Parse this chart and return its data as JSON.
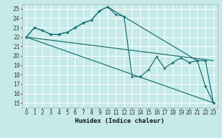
{
  "xlabel": "Humidex (Indice chaleur)",
  "xlim": [
    -0.5,
    23.5
  ],
  "ylim": [
    14.5,
    25.5
  ],
  "yticks": [
    15,
    16,
    17,
    18,
    19,
    20,
    21,
    22,
    23,
    24,
    25
  ],
  "xticks": [
    0,
    1,
    2,
    3,
    4,
    5,
    6,
    7,
    8,
    9,
    10,
    11,
    12,
    13,
    14,
    15,
    16,
    17,
    18,
    19,
    20,
    21,
    22,
    23
  ],
  "background_color": "#c6eaea",
  "grid_color": "#ffffff",
  "line_color": "#1a7070",
  "series": [
    {
      "x": [
        0,
        1,
        2,
        3,
        4,
        5,
        6,
        7,
        8,
        9,
        10,
        11,
        12,
        13,
        14,
        15,
        16,
        17,
        18,
        19,
        20,
        21,
        22,
        23
      ],
      "y": [
        22,
        23,
        22.7,
        22.3,
        22.3,
        22.5,
        23.0,
        23.5,
        23.8,
        24.8,
        25.2,
        24.4,
        24.2,
        17.8,
        17.8,
        18.5,
        19.9,
        18.7,
        19.3,
        19.8,
        19.3,
        19.5,
        19.5,
        15.0
      ],
      "marker": true
    },
    {
      "x": [
        0,
        1,
        2,
        3,
        4,
        5,
        6,
        7,
        8,
        9,
        10,
        21,
        22,
        23
      ],
      "y": [
        22,
        23,
        22.7,
        22.3,
        22.3,
        22.5,
        23.0,
        23.5,
        23.8,
        24.8,
        25.2,
        19.5,
        16.8,
        15.0
      ],
      "marker": true
    },
    {
      "x": [
        0,
        23
      ],
      "y": [
        22,
        19.5
      ],
      "marker": false
    },
    {
      "x": [
        0,
        23
      ],
      "y": [
        22,
        15.0
      ],
      "marker": false
    }
  ]
}
